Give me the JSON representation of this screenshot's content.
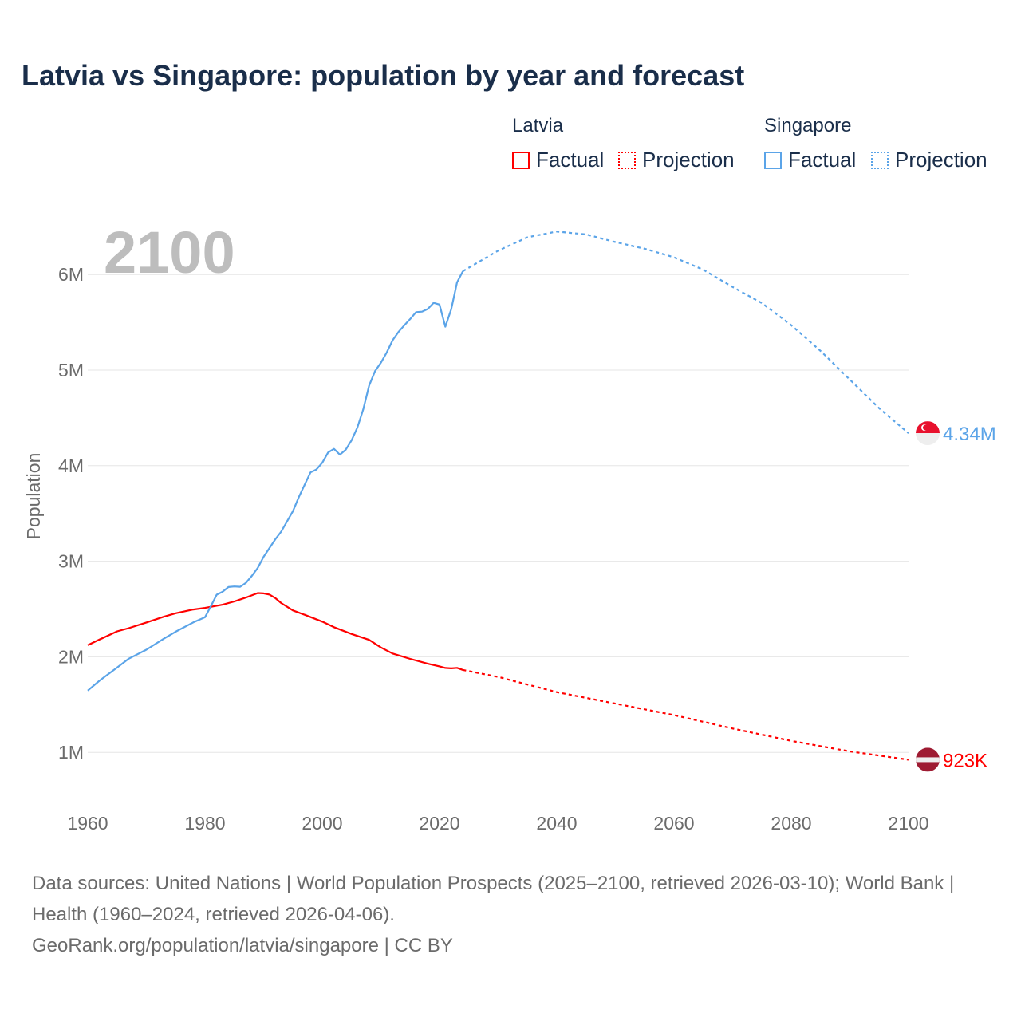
{
  "title": "Latvia vs Singapore: population by year and forecast",
  "legend": {
    "groups": [
      {
        "name": "Latvia",
        "factual": "Factual",
        "projection": "Projection"
      },
      {
        "name": "Singapore",
        "factual": "Factual",
        "projection": "Projection"
      }
    ]
  },
  "year_label": "2100",
  "source": {
    "line1": "Data sources: United Nations | World Population Prospects (2025–2100, retrieved 2026-03-10); World Bank | Health (1960–2024, retrieved 2026-04-06).",
    "line2": "GeoRank.org/population/latvia/singapore | CC BY"
  },
  "chart_data": {
    "type": "line",
    "title": "Latvia vs Singapore: population by year and forecast",
    "xlabel": "",
    "ylabel": "Population",
    "xlim": [
      1960,
      2100
    ],
    "ylim": [
      0,
      6.6
    ],
    "x_ticks": [
      "1960",
      "1980",
      "2000",
      "2020",
      "2040",
      "2060",
      "2080",
      "2100"
    ],
    "y_ticks": [
      {
        "v": 1,
        "label": "1M"
      },
      {
        "v": 2,
        "label": "2M"
      },
      {
        "v": 3,
        "label": "3M"
      },
      {
        "v": 4,
        "label": "4M"
      },
      {
        "v": 5,
        "label": "5M"
      },
      {
        "v": 6,
        "label": "6M"
      }
    ],
    "grid": true,
    "units": "millions",
    "series": [
      {
        "name": "Latvia",
        "color": "#ff0000",
        "end_label": "923K",
        "factual": [
          [
            1960,
            2.121
          ],
          [
            1962,
            2.18
          ],
          [
            1965,
            2.266
          ],
          [
            1967,
            2.3
          ],
          [
            1970,
            2.359
          ],
          [
            1973,
            2.42
          ],
          [
            1975,
            2.456
          ],
          [
            1978,
            2.495
          ],
          [
            1980,
            2.512
          ],
          [
            1983,
            2.545
          ],
          [
            1985,
            2.579
          ],
          [
            1987,
            2.62
          ],
          [
            1989,
            2.667
          ],
          [
            1990,
            2.664
          ],
          [
            1991,
            2.651
          ],
          [
            1992,
            2.614
          ],
          [
            1993,
            2.563
          ],
          [
            1995,
            2.485
          ],
          [
            1997,
            2.44
          ],
          [
            2000,
            2.368
          ],
          [
            2002,
            2.31
          ],
          [
            2005,
            2.239
          ],
          [
            2008,
            2.177
          ],
          [
            2010,
            2.098
          ],
          [
            2012,
            2.034
          ],
          [
            2015,
            1.978
          ],
          [
            2018,
            1.927
          ],
          [
            2020,
            1.9
          ],
          [
            2021,
            1.883
          ],
          [
            2022,
            1.879
          ],
          [
            2023,
            1.884
          ],
          [
            2024,
            1.862
          ]
        ],
        "projection": [
          [
            2024,
            1.862
          ],
          [
            2030,
            1.79
          ],
          [
            2040,
            1.63
          ],
          [
            2050,
            1.51
          ],
          [
            2060,
            1.39
          ],
          [
            2070,
            1.25
          ],
          [
            2080,
            1.12
          ],
          [
            2090,
            1.01
          ],
          [
            2100,
            0.923
          ]
        ]
      },
      {
        "name": "Singapore",
        "color": "#5ba4e8",
        "end_label": "4.34M",
        "factual": [
          [
            1960,
            1.646
          ],
          [
            1962,
            1.75
          ],
          [
            1965,
            1.887
          ],
          [
            1967,
            1.98
          ],
          [
            1970,
            2.074
          ],
          [
            1973,
            2.19
          ],
          [
            1975,
            2.263
          ],
          [
            1978,
            2.36
          ],
          [
            1980,
            2.414
          ],
          [
            1981,
            2.53
          ],
          [
            1982,
            2.65
          ],
          [
            1983,
            2.68
          ],
          [
            1984,
            2.73
          ],
          [
            1985,
            2.736
          ],
          [
            1986,
            2.733
          ],
          [
            1987,
            2.775
          ],
          [
            1988,
            2.847
          ],
          [
            1989,
            2.93
          ],
          [
            1990,
            3.047
          ],
          [
            1992,
            3.23
          ],
          [
            1993,
            3.31
          ],
          [
            1995,
            3.525
          ],
          [
            1996,
            3.67
          ],
          [
            1997,
            3.8
          ],
          [
            1998,
            3.93
          ],
          [
            1999,
            3.96
          ],
          [
            2000,
            4.03
          ],
          [
            2001,
            4.138
          ],
          [
            2002,
            4.176
          ],
          [
            2003,
            4.115
          ],
          [
            2004,
            4.167
          ],
          [
            2005,
            4.266
          ],
          [
            2006,
            4.401
          ],
          [
            2007,
            4.589
          ],
          [
            2008,
            4.839
          ],
          [
            2009,
            4.988
          ],
          [
            2010,
            5.077
          ],
          [
            2011,
            5.184
          ],
          [
            2012,
            5.312
          ],
          [
            2013,
            5.399
          ],
          [
            2014,
            5.469
          ],
          [
            2015,
            5.535
          ],
          [
            2016,
            5.607
          ],
          [
            2017,
            5.612
          ],
          [
            2018,
            5.639
          ],
          [
            2019,
            5.704
          ],
          [
            2020,
            5.686
          ],
          [
            2021,
            5.454
          ],
          [
            2022,
            5.637
          ],
          [
            2023,
            5.918
          ],
          [
            2024,
            6.036
          ]
        ],
        "projection": [
          [
            2024,
            6.036
          ],
          [
            2030,
            6.25
          ],
          [
            2035,
            6.39
          ],
          [
            2040,
            6.45
          ],
          [
            2045,
            6.42
          ],
          [
            2050,
            6.34
          ],
          [
            2055,
            6.27
          ],
          [
            2060,
            6.18
          ],
          [
            2065,
            6.05
          ],
          [
            2070,
            5.87
          ],
          [
            2075,
            5.7
          ],
          [
            2080,
            5.47
          ],
          [
            2085,
            5.2
          ],
          [
            2090,
            4.9
          ],
          [
            2095,
            4.6
          ],
          [
            2100,
            4.34
          ]
        ]
      }
    ]
  }
}
